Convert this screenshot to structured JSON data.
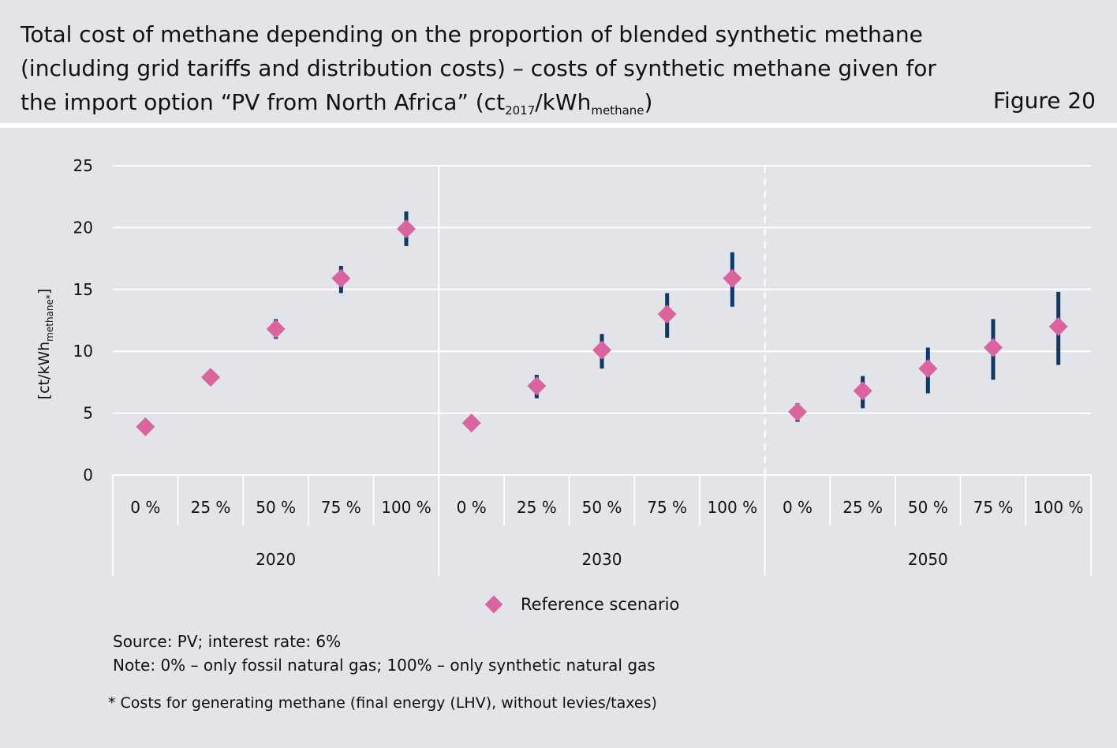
{
  "header": {
    "title_line1": "Total cost of methane depending on the proportion of blended synthetic methane",
    "title_line2": "(including grid tariffs and distribution costs) – costs of synthetic methane given for",
    "title_line3_pre": "the import option “PV from North Africa” (ct",
    "title_line3_sub1": "2017",
    "title_line3_mid": "/kWh",
    "title_line3_sub2": "methane",
    "title_line3_post": ")",
    "figure_label": "Figure 20"
  },
  "colors": {
    "marker": "#d9649e",
    "errorbar": "#0e3966",
    "grid": "#ffffff",
    "background": "#e3e4e9"
  },
  "chart_data": {
    "type": "scatter",
    "ylabel_pre": "[ct/kWh",
    "ylabel_sub": "methane*",
    "ylabel_post": "]",
    "ylim": [
      0,
      25
    ],
    "yticks": [
      0,
      5,
      10,
      15,
      20,
      25
    ],
    "grid": true,
    "groups": [
      "2020",
      "2030",
      "2050"
    ],
    "categories": [
      "0 %",
      "25 %",
      "50 %",
      "75 %",
      "100 %"
    ],
    "series": [
      {
        "name": "Reference scenario",
        "points": [
          {
            "group": "2020",
            "category": "0 %",
            "y": 3.9,
            "low": 3.9,
            "high": 3.9
          },
          {
            "group": "2020",
            "category": "25 %",
            "y": 7.9,
            "low": 7.9,
            "high": 7.9
          },
          {
            "group": "2020",
            "category": "50 %",
            "y": 11.8,
            "low": 11.0,
            "high": 12.6
          },
          {
            "group": "2020",
            "category": "75 %",
            "y": 15.9,
            "low": 14.7,
            "high": 16.9
          },
          {
            "group": "2020",
            "category": "100 %",
            "y": 19.9,
            "low": 18.5,
            "high": 21.3
          },
          {
            "group": "2030",
            "category": "0 %",
            "y": 4.2,
            "low": 4.2,
            "high": 4.2
          },
          {
            "group": "2030",
            "category": "25 %",
            "y": 7.2,
            "low": 6.2,
            "high": 8.1
          },
          {
            "group": "2030",
            "category": "50 %",
            "y": 10.1,
            "low": 8.6,
            "high": 11.4
          },
          {
            "group": "2030",
            "category": "75 %",
            "y": 13.0,
            "low": 11.1,
            "high": 14.7
          },
          {
            "group": "2030",
            "category": "100 %",
            "y": 15.9,
            "low": 13.6,
            "high": 18.0
          },
          {
            "group": "2050",
            "category": "0 %",
            "y": 5.1,
            "low": 4.3,
            "high": 5.8
          },
          {
            "group": "2050",
            "category": "25 %",
            "y": 6.8,
            "low": 5.4,
            "high": 8.0
          },
          {
            "group": "2050",
            "category": "50 %",
            "y": 8.6,
            "low": 6.6,
            "high": 10.3
          },
          {
            "group": "2050",
            "category": "75 %",
            "y": 10.3,
            "low": 7.7,
            "high": 12.6
          },
          {
            "group": "2050",
            "category": "100 %",
            "y": 12.0,
            "low": 8.9,
            "high": 14.8
          }
        ]
      }
    ],
    "legend": {
      "label": "Reference scenario",
      "placement": "bottom"
    }
  },
  "notes": {
    "source": "Source: PV; interest rate: 6%",
    "note": "Note: 0% – only fossil natural gas; 100% – only synthetic natural gas",
    "footnote": "* Costs for generating methane (final energy (LHV), without levies/taxes)"
  }
}
